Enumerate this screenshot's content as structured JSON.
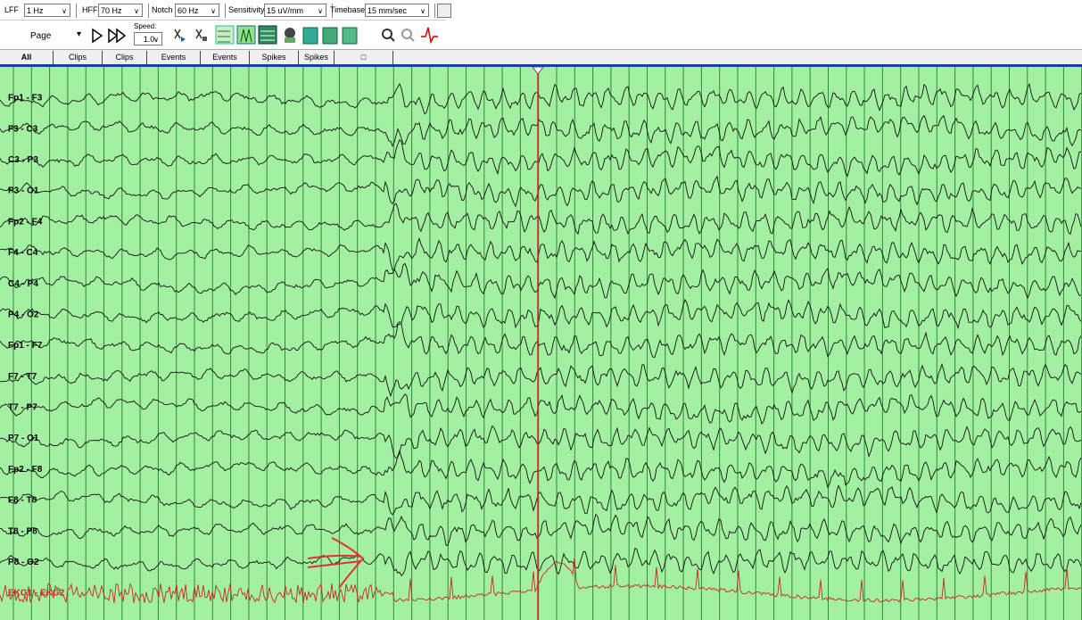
{
  "toolbar": {
    "filters": [
      {
        "label": "LFF",
        "value": "1 Hz"
      },
      {
        "label": "HFF",
        "value": "70 Hz"
      },
      {
        "label": "Notch",
        "value": "60 Hz"
      },
      {
        "label": "Sensitivity",
        "value": "15 uV/mm"
      },
      {
        "label": "Timebase",
        "value": "15 mm/sec"
      }
    ],
    "page": "Page",
    "speed_label": "Speed:",
    "speed": "1.0"
  },
  "tabs": [
    "All",
    "Clips",
    "Clips",
    "Events",
    "Events",
    "Spikes",
    "Spikes"
  ],
  "channels": [
    "Fp1 - F3",
    "F3 - C3",
    "C3 - P3",
    "P3 - O1",
    "Fp2 - F4",
    "F4 - C4",
    "C4 - P4",
    "P4 - O2",
    "Fp1 - F7",
    "F7 - T7",
    "T7 - P7",
    "P7 - O1",
    "Fp2 - F8",
    "F8 - T8",
    "T8 - P8",
    "P8 - O2",
    "EKG1 - EKG2"
  ]
}
